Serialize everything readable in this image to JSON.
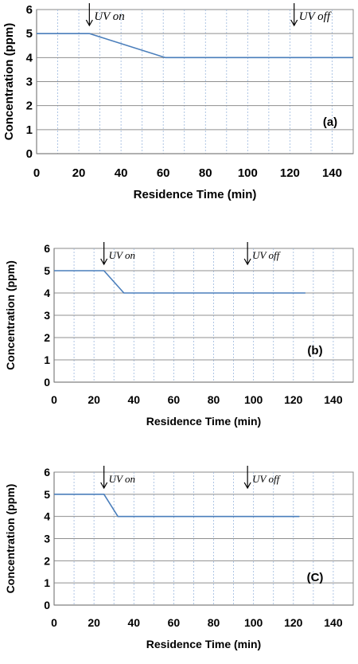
{
  "chart_data": [
    {
      "type": "line",
      "panel_label": "(a)",
      "xlabel": "Residence Time (min)",
      "ylabel": "Concentration (ppm)",
      "xlim": [
        0,
        150
      ],
      "ylim": [
        0,
        6
      ],
      "x_ticks": [
        0,
        20,
        40,
        60,
        80,
        100,
        120,
        140
      ],
      "y_ticks": [
        0,
        1,
        2,
        3,
        4,
        5,
        6
      ],
      "grid": true,
      "line_color": "#4a7ebb",
      "series": [
        {
          "x": [
            0,
            25,
            61,
            150
          ],
          "y": [
            5,
            5,
            4,
            4
          ]
        }
      ],
      "annotations": [
        {
          "text": "UV on",
          "x": 25
        },
        {
          "text": "UV off",
          "x": 122
        }
      ]
    },
    {
      "type": "line",
      "panel_label": "(b)",
      "xlabel": "Residence Time (min)",
      "ylabel": "Concentration (ppm)",
      "xlim": [
        0,
        150
      ],
      "ylim": [
        0,
        6
      ],
      "x_ticks": [
        0,
        20,
        40,
        60,
        80,
        100,
        120,
        140
      ],
      "y_ticks": [
        0,
        1,
        2,
        3,
        4,
        5,
        6
      ],
      "grid": true,
      "line_color": "#4a7ebb",
      "series": [
        {
          "x": [
            0,
            25,
            35,
            126
          ],
          "y": [
            5,
            5,
            4,
            4
          ]
        }
      ],
      "annotations": [
        {
          "text": "UV on",
          "x": 25
        },
        {
          "text": "UV off",
          "x": 97
        }
      ]
    },
    {
      "type": "line",
      "panel_label": "(C)",
      "xlabel": "Residence Time (min)",
      "ylabel": "Concentration (ppm)",
      "xlim": [
        0,
        150
      ],
      "ylim": [
        0,
        6
      ],
      "x_ticks": [
        0,
        20,
        40,
        60,
        80,
        100,
        120,
        140
      ],
      "y_ticks": [
        0,
        1,
        2,
        3,
        4,
        5,
        6
      ],
      "grid": true,
      "line_color": "#4a7ebb",
      "series": [
        {
          "x": [
            0,
            25,
            32,
            123
          ],
          "y": [
            5,
            5,
            4,
            4
          ]
        }
      ],
      "annotations": [
        {
          "text": "UV on",
          "x": 25
        },
        {
          "text": "UV off",
          "x": 97
        }
      ]
    }
  ]
}
